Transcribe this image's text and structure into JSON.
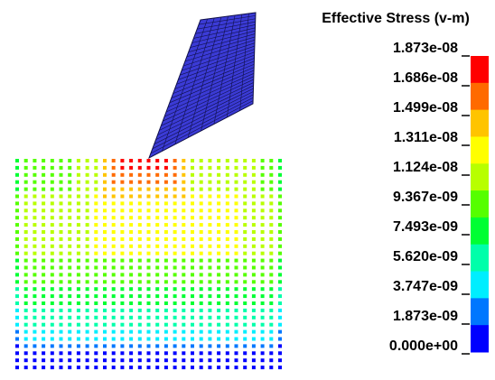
{
  "legend": {
    "title": "Effective Stress (v-m)",
    "labels": [
      "1.873e-08",
      "1.686e-08",
      "1.499e-08",
      "1.311e-08",
      "1.124e-08",
      "9.367e-09",
      "7.493e-09",
      "5.620e-09",
      "3.747e-09",
      "1.873e-09",
      "0.000e+00"
    ],
    "colors": [
      "#ff0000",
      "#ff6a00",
      "#ffc400",
      "#ffff00",
      "#b8ff00",
      "#55ff00",
      "#00ff33",
      "#00ffaa",
      "#00eeff",
      "#0077ff",
      "#0000ff"
    ]
  }
}
